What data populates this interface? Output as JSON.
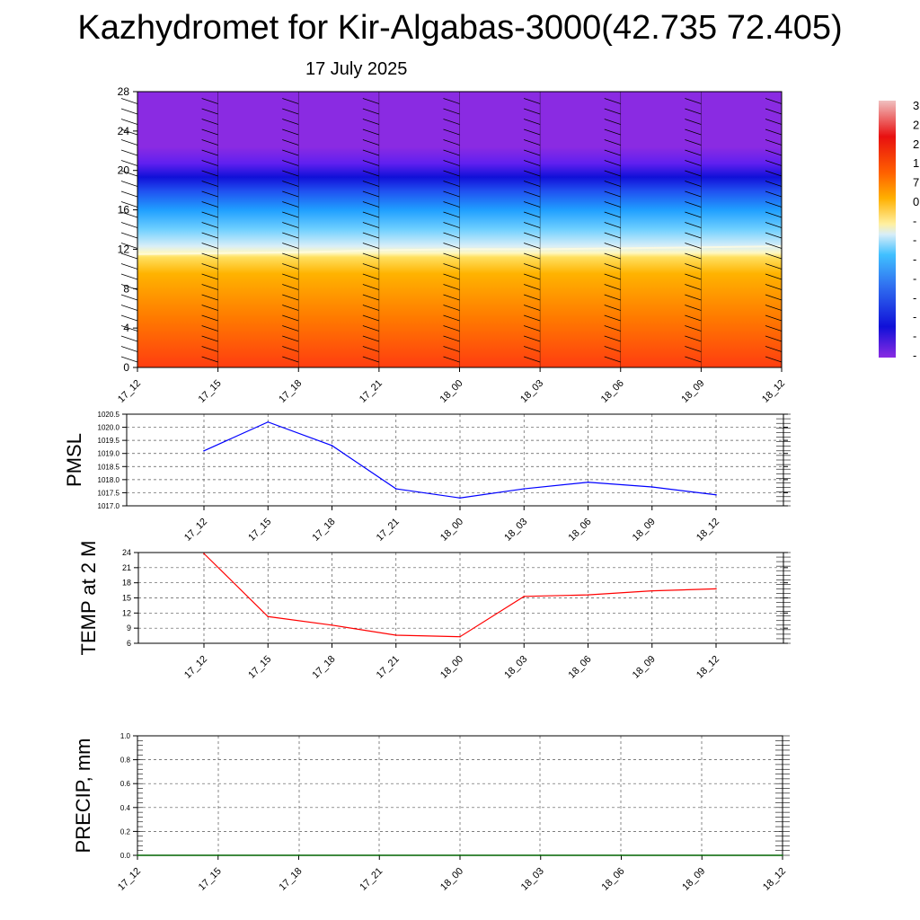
{
  "title": "Kazhydromet for Kir-Algabas-3000(42.735 72.405)",
  "date": "17 July 2025",
  "chart_data": [
    {
      "type": "heatmap",
      "name": "vertical-section",
      "x_labels": [
        "17_12",
        "17_15",
        "17_18",
        "17_21",
        "18_00",
        "18_03",
        "18_06",
        "18_09",
        "18_12"
      ],
      "y_ticks": [
        0,
        4,
        8,
        12,
        16,
        20,
        24,
        28
      ],
      "ylim": [
        0,
        28
      ],
      "colorbar_labels": [
        "3",
        "2",
        "2",
        "1",
        "7",
        "0",
        "-",
        "-",
        "-",
        "-",
        "-",
        "-",
        "-",
        "-"
      ],
      "colors": {
        "warm_low": "#ff4410",
        "warm_mid": "#ffa000",
        "zero": "#fff8a0",
        "cold_low": "#40c8ff",
        "cold_deep": "#1010e8",
        "top": "#8a2be2"
      },
      "freezing_level_km": [
        11.5,
        11.6,
        11.7,
        11.9,
        12.0,
        12.0,
        12.1,
        12.2,
        12.3
      ]
    },
    {
      "type": "line",
      "name": "pmsl",
      "ylabel": "PMSL",
      "x": [
        "17_12",
        "17_15",
        "17_18",
        "17_21",
        "18_00",
        "18_03",
        "18_06",
        "18_09",
        "18_12"
      ],
      "values": [
        1019.1,
        1020.2,
        1019.3,
        1017.65,
        1017.3,
        1017.65,
        1017.9,
        1017.72,
        1017.42
      ],
      "ylim": [
        1017.0,
        1020.5
      ],
      "y_ticks": [
        "1017.0",
        "1017.5",
        "1018.0",
        "1018.5",
        "1019.0",
        "1019.5",
        "1020.0",
        "1020.5"
      ],
      "color": "#0000ff",
      "grid": true
    },
    {
      "type": "line",
      "name": "temp",
      "ylabel": "TEMP at 2 M",
      "x": [
        "17_12",
        "17_15",
        "17_18",
        "17_21",
        "18_00",
        "18_03",
        "18_06",
        "18_09",
        "18_12"
      ],
      "values": [
        23.8,
        11.3,
        9.6,
        7.6,
        7.3,
        15.3,
        15.6,
        16.4,
        16.8
      ],
      "ylim": [
        6,
        24
      ],
      "y_ticks": [
        "6",
        "9",
        "12",
        "15",
        "18",
        "21",
        "24"
      ],
      "color": "#ff0000",
      "grid": true
    },
    {
      "type": "line",
      "name": "precip",
      "ylabel": "PRECIP, mm",
      "x_labels": [
        "17_12",
        "17_15",
        "17_18",
        "17_21",
        "18_00",
        "18_03",
        "18_06",
        "18_09",
        "18_12"
      ],
      "values": [
        0,
        0,
        0,
        0,
        0,
        0,
        0,
        0,
        0
      ],
      "ylim": [
        0,
        1
      ],
      "y_ticks": [
        "0.0",
        "0.2",
        "0.4",
        "0.6",
        "0.8",
        "1.0"
      ],
      "color": "#006400",
      "grid": true
    }
  ]
}
